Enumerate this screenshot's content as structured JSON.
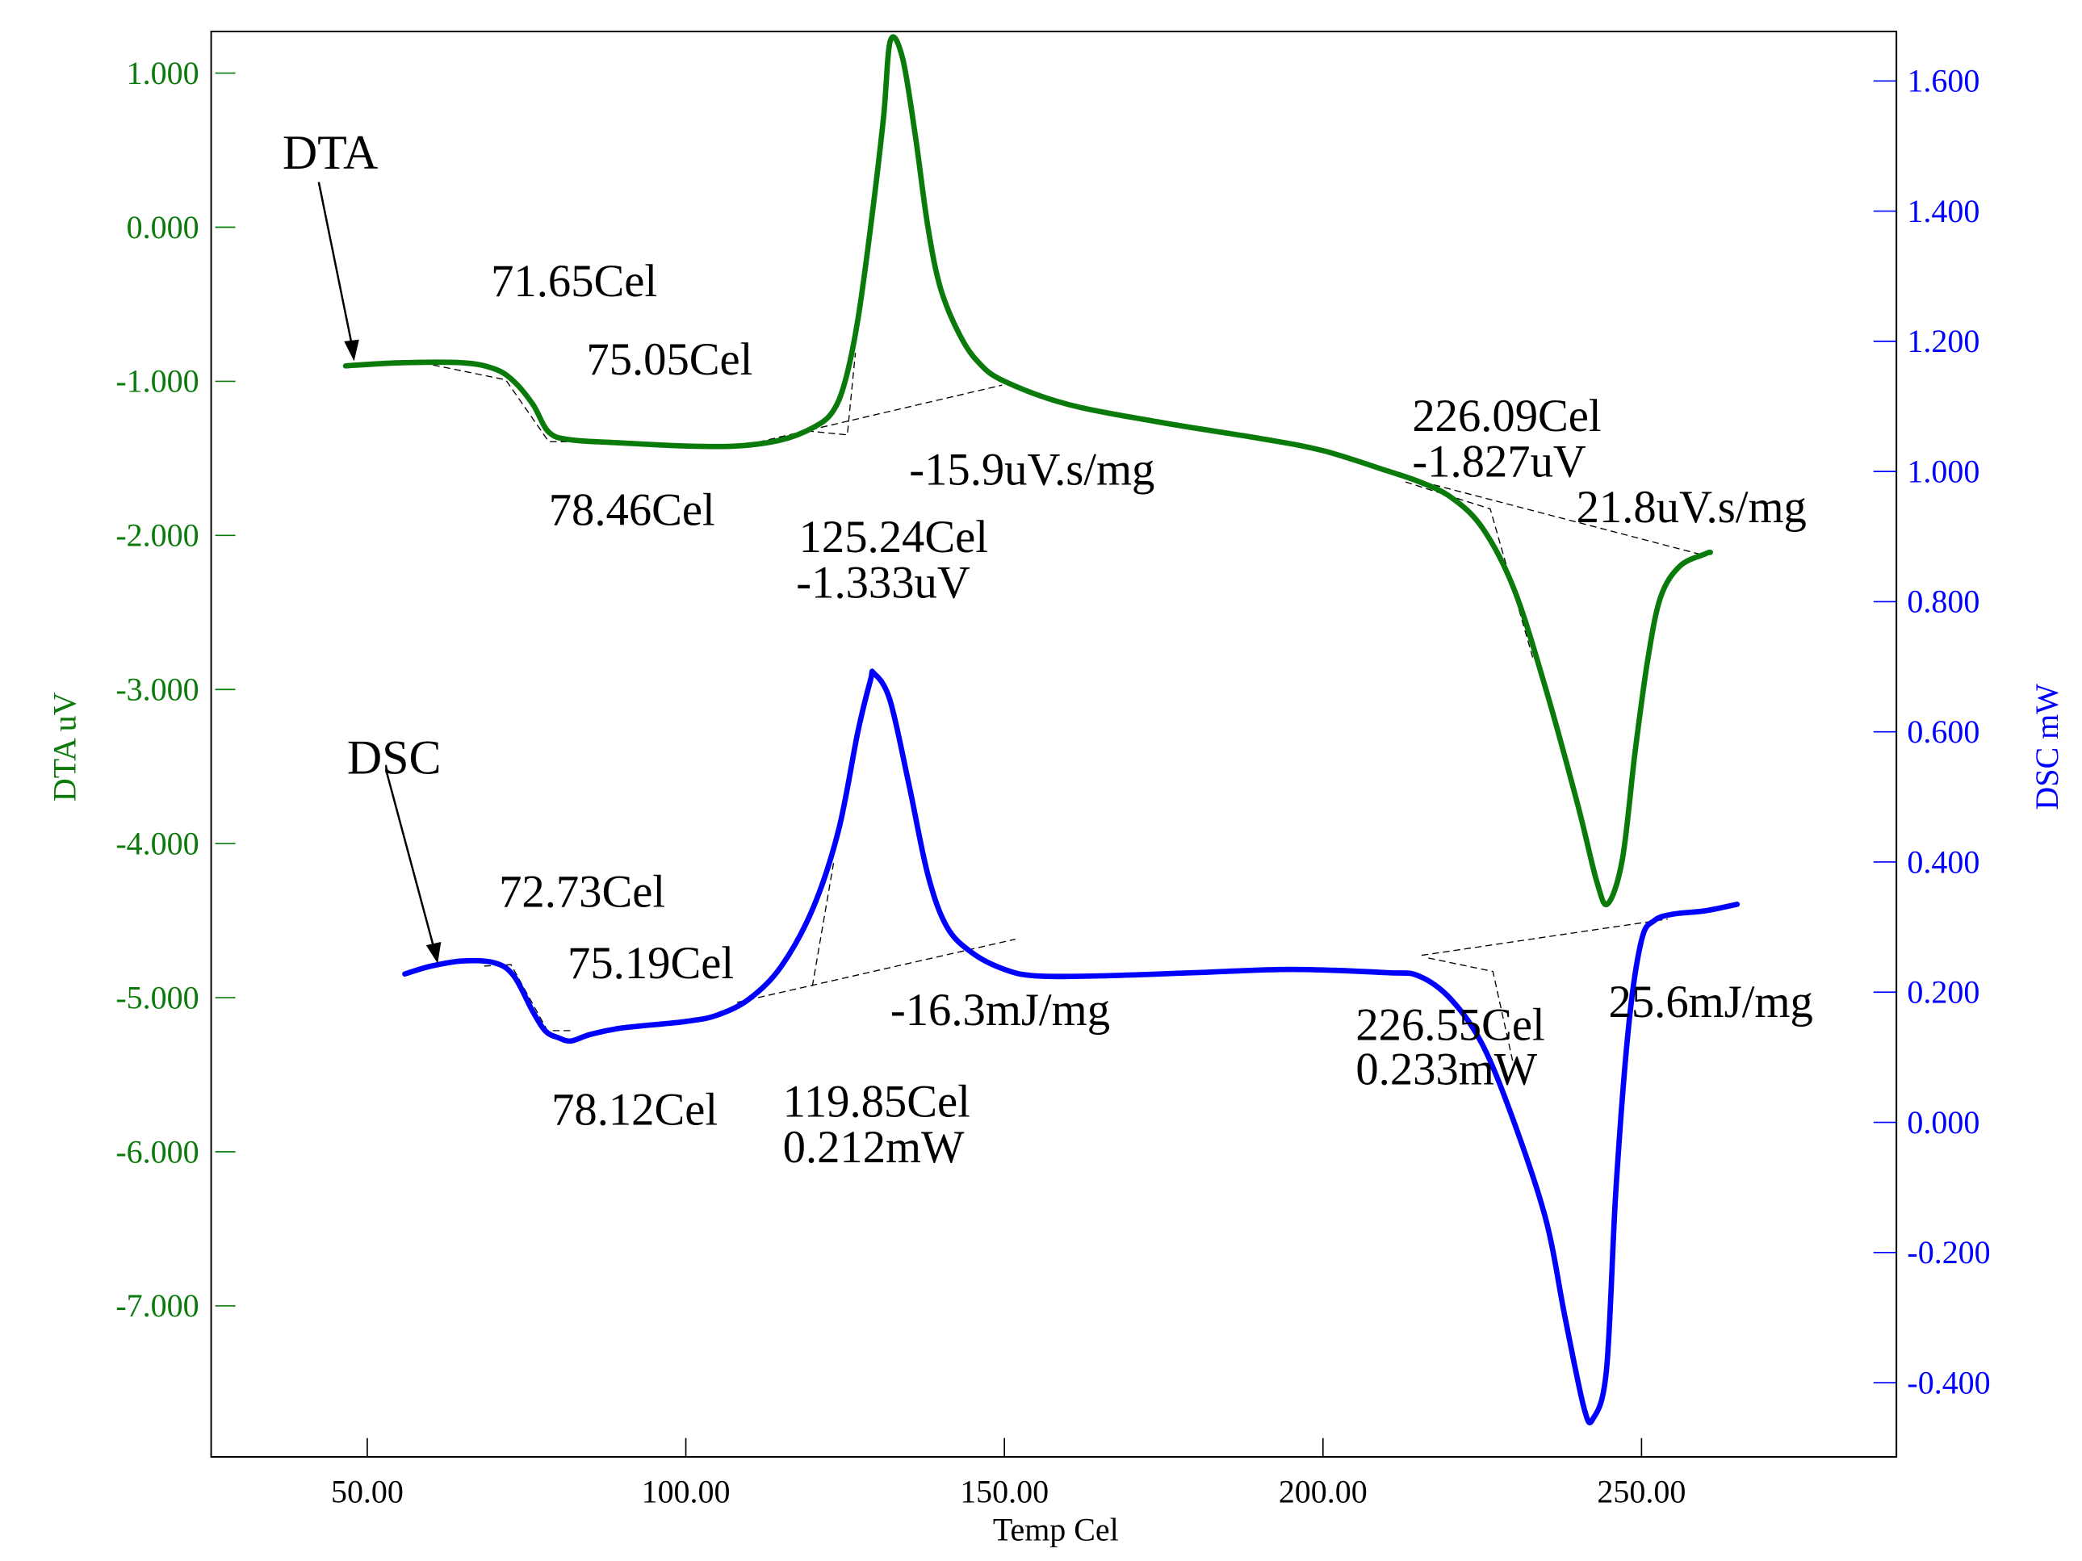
{
  "chart_data": {
    "type": "line",
    "title": "",
    "xlabel": "Temp Cel",
    "ylabel_left": "DTA uV",
    "ylabel_right": "DSC mW",
    "xlim": [
      25.5,
      290
    ],
    "ylim_left": [
      -7.98,
      1.27
    ],
    "ylim_right": [
      -0.514,
      1.676
    ],
    "x_ticks": [
      50,
      100,
      150,
      200,
      250
    ],
    "x_tick_labels": [
      "50.00",
      "100.00",
      "150.00",
      "200.00",
      "250.00"
    ],
    "y_left_ticks": [
      1,
      0,
      -1,
      -2,
      -3,
      -4,
      -5,
      -6,
      -7
    ],
    "y_left_tick_labels": [
      "1.000",
      "0.000",
      "-1.000",
      "-2.000",
      "-3.000",
      "-4.000",
      "-5.000",
      "-6.000",
      "-7.000"
    ],
    "y_right_ticks": [
      1.6,
      1.4,
      1.2,
      1.0,
      0.8,
      0.6,
      0.4,
      0.2,
      0.0,
      -0.2,
      -0.4
    ],
    "y_right_tick_labels": [
      "1.600",
      "1.400",
      "1.200",
      "1.000",
      "0.800",
      "0.600",
      "0.400",
      "0.200",
      "0.000",
      "-0.200",
      "-0.400"
    ],
    "colors": {
      "dta": "#0a7a0a",
      "dsc": "#0000ff",
      "left_axis": "#0a7a0a",
      "right_axis": "#0000ff"
    },
    "grid": false,
    "series": [
      {
        "name": "DTA",
        "axis": "left",
        "label": "DTA",
        "x": [
          46.6,
          55,
          65,
          70,
          73,
          76,
          78.5,
          82,
          90,
          100,
          108,
          115,
          120,
          123,
          125,
          127,
          129,
          131,
          132.1,
          134,
          136,
          138,
          140,
          143,
          146,
          150,
          160,
          175,
          190,
          200,
          210,
          215,
          220,
          225,
          230,
          235,
          240,
          243,
          244.7,
          247,
          249,
          251,
          253,
          256,
          260,
          260.8
        ],
        "y": [
          -0.9,
          -0.88,
          -0.88,
          -0.92,
          -1.0,
          -1.15,
          -1.33,
          -1.38,
          -1.4,
          -1.42,
          -1.42,
          -1.38,
          -1.3,
          -1.2,
          -1.0,
          -0.6,
          0.0,
          0.7,
          1.21,
          1.1,
          0.6,
          0.0,
          -0.4,
          -0.7,
          -0.88,
          -1.0,
          -1.15,
          -1.27,
          -1.37,
          -1.45,
          -1.58,
          -1.65,
          -1.75,
          -1.95,
          -2.35,
          -3.0,
          -3.75,
          -4.25,
          -4.39,
          -4.1,
          -3.4,
          -2.8,
          -2.4,
          -2.2,
          -2.12,
          -2.11
        ]
      },
      {
        "name": "DSC",
        "axis": "right",
        "label": "DSC",
        "x": [
          55.9,
          60,
          65,
          70,
          73,
          76,
          78,
          80,
          82,
          85,
          90,
          100,
          105,
          110,
          115,
          120,
          124,
          127,
          129,
          129.5,
          132,
          135,
          138,
          141,
          145,
          150,
          155,
          165,
          180,
          195,
          210,
          215,
          220,
          225,
          230,
          235,
          238,
          241,
          242.4,
          244.5,
          246,
          248,
          250,
          252,
          255,
          260,
          265
        ],
        "y": [
          0.228,
          0.24,
          0.248,
          0.245,
          0.225,
          0.17,
          0.14,
          0.13,
          0.125,
          0.135,
          0.145,
          0.155,
          0.165,
          0.19,
          0.24,
          0.33,
          0.45,
          0.6,
          0.68,
          0.69,
          0.65,
          0.52,
          0.38,
          0.3,
          0.26,
          0.235,
          0.225,
          0.225,
          0.23,
          0.235,
          0.23,
          0.225,
          0.19,
          0.12,
          0.0,
          -0.15,
          -0.3,
          -0.44,
          -0.455,
          -0.38,
          -0.1,
          0.15,
          0.28,
          0.31,
          0.32,
          0.325,
          0.335
        ]
      }
    ],
    "annotations": {
      "dta": [
        "71.65Cel",
        "75.05Cel",
        "78.46Cel",
        "-15.9uV.s/mg",
        "125.24Cel",
        "-1.333uV",
        "226.09Cel",
        "-1.827uV",
        "21.8uV.s/mg"
      ],
      "dsc": [
        "72.73Cel",
        "75.19Cel",
        "78.12Cel",
        "-16.3mJ/mg",
        "119.85Cel",
        "0.212mW",
        "226.55Cel",
        "0.233mW",
        "25.6mJ/mg"
      ]
    }
  }
}
